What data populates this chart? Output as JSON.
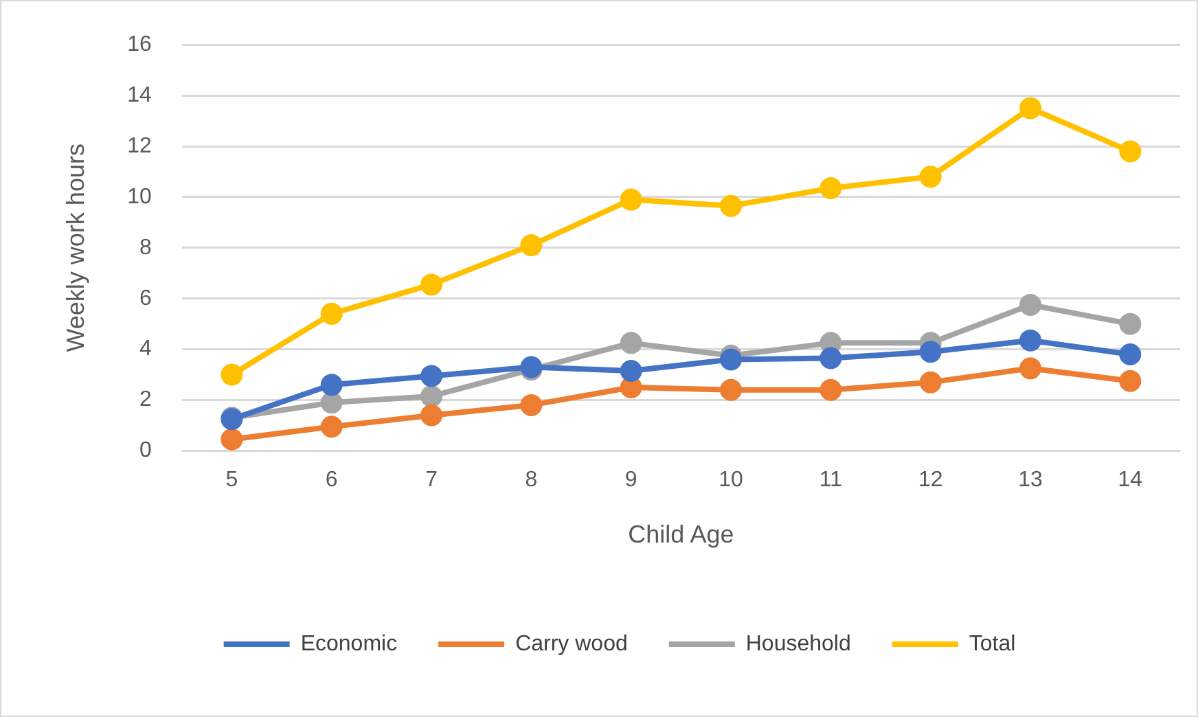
{
  "chart_data": {
    "type": "line",
    "xlabel": "Child Age",
    "ylabel": "Weekly work hours",
    "categories": [
      "5",
      "6",
      "7",
      "8",
      "9",
      "10",
      "11",
      "12",
      "13",
      "14"
    ],
    "series": [
      {
        "name": "Economic",
        "color": "#4472c4",
        "values": [
          1.25,
          2.6,
          2.95,
          3.3,
          3.15,
          3.6,
          3.65,
          3.9,
          4.35,
          3.8
        ]
      },
      {
        "name": "Carry wood",
        "color": "#ed7d31",
        "values": [
          0.45,
          0.95,
          1.4,
          1.8,
          2.5,
          2.4,
          2.4,
          2.7,
          3.25,
          2.75
        ]
      },
      {
        "name": "Household",
        "color": "#a5a5a5",
        "values": [
          1.3,
          1.9,
          2.15,
          3.2,
          4.25,
          3.75,
          4.25,
          4.25,
          5.75,
          5.0
        ]
      },
      {
        "name": "Total",
        "color": "#ffc000",
        "values": [
          3.0,
          5.4,
          6.55,
          8.1,
          9.9,
          9.65,
          10.35,
          10.8,
          13.5,
          11.8
        ]
      }
    ],
    "ylim": [
      0,
      16
    ],
    "yticks": [
      0,
      2,
      4,
      6,
      8,
      10,
      12,
      14,
      16
    ],
    "grid": "y",
    "legend": "bottom",
    "marker": "circle",
    "line_style": "solid"
  }
}
